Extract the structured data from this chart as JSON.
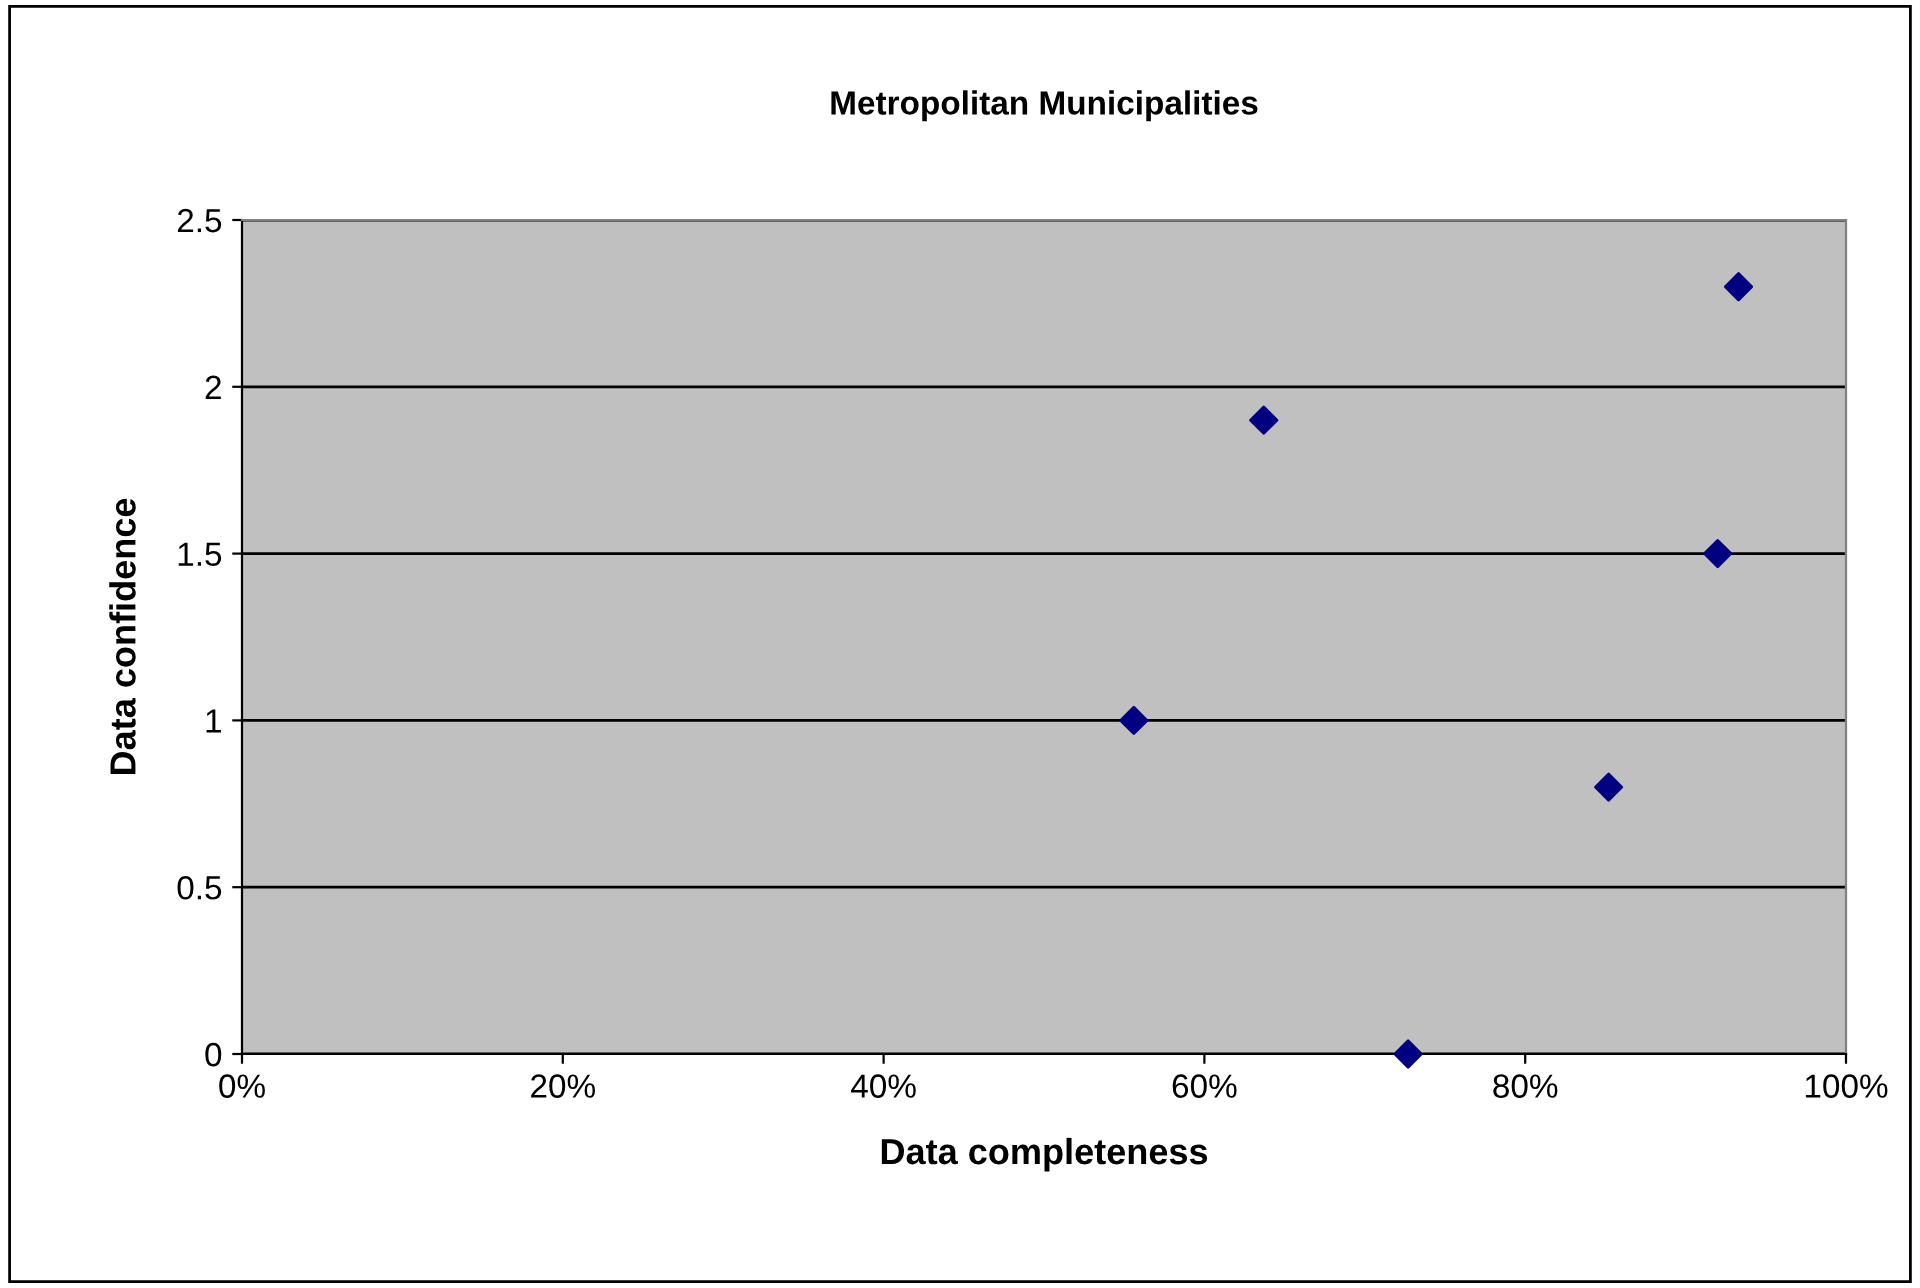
{
  "chart_data": {
    "type": "scatter",
    "title": "Metropolitan Municipalities",
    "xlabel": "Data completeness",
    "ylabel": "Data confidence",
    "x": [
      55.6,
      63.7,
      72.7,
      85.2,
      92.0,
      93.3
    ],
    "series": [
      {
        "color": "#000080",
        "values": [
          1.0,
          1.9,
          0.0,
          0.8,
          1.5,
          2.3
        ]
      }
    ],
    "xlim": [
      0,
      100
    ],
    "xticks": [
      {
        "value": 0,
        "label": "0%"
      },
      {
        "value": 20,
        "label": "20%"
      },
      {
        "value": 40,
        "label": "40%"
      },
      {
        "value": 60,
        "label": "60%"
      },
      {
        "value": 80,
        "label": "80%"
      },
      {
        "value": 100,
        "label": "100%"
      }
    ],
    "ylim": [
      0,
      2.5
    ],
    "yticks": [
      0,
      0.5,
      1,
      1.5,
      2,
      2.5
    ],
    "grid": "y",
    "marker": "diamond",
    "legend": false
  }
}
